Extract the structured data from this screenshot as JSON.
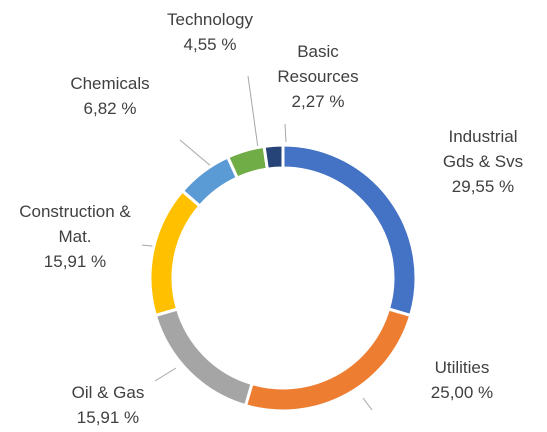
{
  "chart_data": {
    "type": "donut",
    "categories": [
      "Industrial Gds & Svs",
      "Utilities",
      "Oil & Gas",
      "Construction & Mat.",
      "Chemicals",
      "Technology",
      "Basic Resources"
    ],
    "values": [
      29.55,
      25.0,
      15.91,
      15.91,
      6.82,
      4.55,
      2.27
    ],
    "value_labels": [
      "29,55 %",
      "25,00 %",
      "15,91 %",
      "15,91 %",
      "6,82 %",
      "4,55 %",
      "2,27 %"
    ],
    "colors": [
      "#4472c4",
      "#ed7d31",
      "#a5a5a5",
      "#ffc000",
      "#5b9bd5",
      "#70ad47",
      "#264478"
    ]
  }
}
